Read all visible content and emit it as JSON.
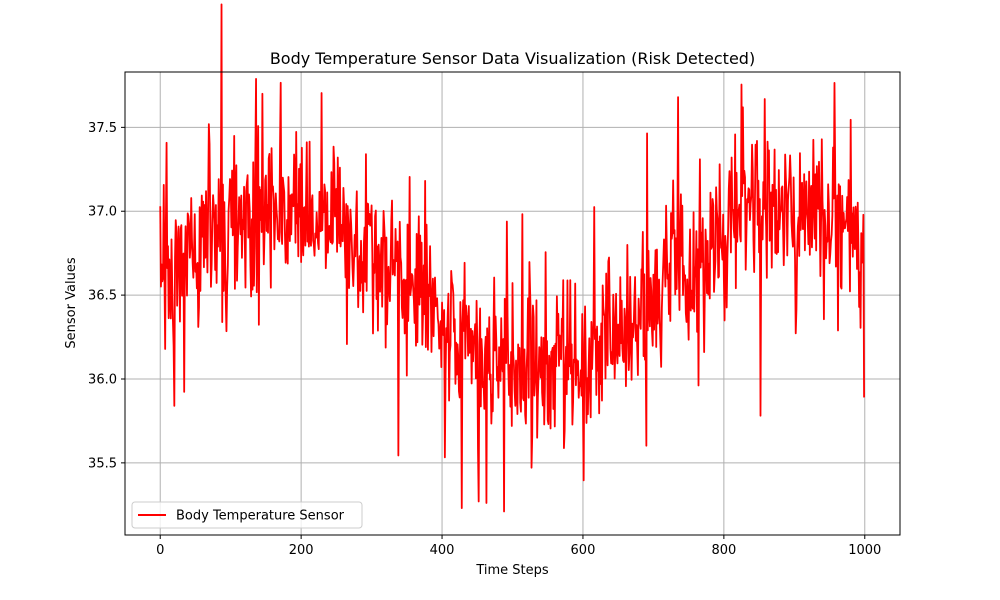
{
  "chart_data": {
    "type": "line",
    "title": "Body Temperature Sensor Data Visualization (Risk Detected)",
    "xlabel": "Time Steps",
    "ylabel": "Sensor Values",
    "xlim": [
      -50,
      1050
    ],
    "ylim": [
      35.07,
      37.83
    ],
    "x_ticks": [
      0,
      200,
      400,
      600,
      800,
      1000
    ],
    "y_ticks": [
      35.5,
      36.0,
      36.5,
      37.0,
      37.5
    ],
    "x_tick_labels": [
      "0",
      "200",
      "400",
      "600",
      "800",
      "1000"
    ],
    "y_tick_labels": [
      "35.5",
      "36.0",
      "36.5",
      "37.0",
      "37.5"
    ],
    "grid": true,
    "legend_position": "lower-left",
    "series": [
      {
        "name": "Body Temperature Sensor",
        "color": "#ff0000",
        "x_start": 0,
        "x_step": 1,
        "values_note": "1000 samples, t = 0..999",
        "values": []
      }
    ]
  }
}
